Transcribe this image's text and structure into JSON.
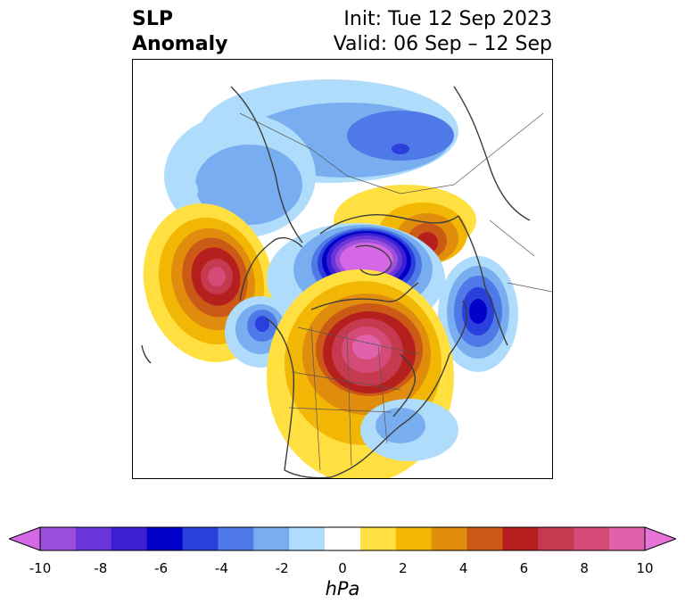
{
  "title": {
    "left_line1": "SLP",
    "left_line2": "Anomaly",
    "right_line1": "Init: Tue 12 Sep 2023",
    "right_line2": "Valid: 06 Sep – 12 Sep"
  },
  "map": {
    "projection": "polar stereographic",
    "region": "North America / North Pacific / Arctic"
  },
  "colorbar": {
    "label": "hPa",
    "ticks": [
      "-10",
      "-8",
      "-6",
      "-4",
      "-2",
      "0",
      "2",
      "4",
      "6",
      "8",
      "10"
    ],
    "colors": [
      "#d568e6",
      "#9c4fdb",
      "#6a36d9",
      "#3b1fd2",
      "#0000c8",
      "#2b3fdc",
      "#4e79e6",
      "#78aef0",
      "#afdcfb",
      "#ffffff",
      "#ffe040",
      "#f2b705",
      "#e08c0c",
      "#cc5a17",
      "#b5201f",
      "#c63a4f",
      "#d44b77",
      "#df62ab",
      "#e873d6"
    ]
  },
  "anomalies": [
    {
      "name": "north-pacific-high",
      "peak_hpa": 9
    },
    {
      "name": "canadian-high",
      "peak_hpa": 10
    },
    {
      "name": "arctic-low",
      "peak_hpa": -10
    },
    {
      "name": "labrador-sea-low",
      "peak_hpa": -7
    },
    {
      "name": "siberian-high",
      "peak_hpa": 6
    },
    {
      "name": "gulf-of-alaska-low",
      "peak_hpa": -5
    },
    {
      "name": "southeast-us-low",
      "peak_hpa": -3
    },
    {
      "name": "eurasian-low",
      "peak_hpa": -5
    }
  ]
}
